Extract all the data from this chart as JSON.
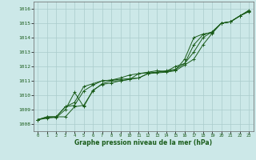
{
  "background_color": "#cce8e8",
  "grid_color": "#aacccc",
  "line_color": "#1a5c1a",
  "xlabel": "Graphe pression niveau de la mer (hPa)",
  "ylim": [
    1007.5,
    1016.5
  ],
  "xlim": [
    -0.5,
    23.5
  ],
  "yticks": [
    1008,
    1009,
    1010,
    1011,
    1012,
    1013,
    1014,
    1015,
    1016
  ],
  "xticks": [
    0,
    1,
    2,
    3,
    4,
    5,
    6,
    7,
    8,
    9,
    10,
    11,
    12,
    13,
    14,
    15,
    16,
    17,
    18,
    19,
    20,
    21,
    22,
    23
  ],
  "series": [
    [
      1008.3,
      1008.5,
      1008.5,
      1009.2,
      1009.3,
      1010.3,
      1010.7,
      1011.0,
      1011.05,
      1011.1,
      1011.15,
      1011.2,
      1011.5,
      1011.55,
      1011.6,
      1011.7,
      1012.1,
      1012.5,
      1013.5,
      1014.3,
      1015.0,
      1015.1,
      1015.5,
      1015.8
    ],
    [
      1008.3,
      1008.5,
      1008.5,
      1009.2,
      1009.5,
      1010.6,
      1010.8,
      1011.0,
      1011.05,
      1011.2,
      1011.4,
      1011.5,
      1011.55,
      1011.6,
      1011.7,
      1011.8,
      1012.2,
      1013.5,
      1014.2,
      1014.4,
      1015.0,
      1015.1,
      1015.5,
      1015.9
    ],
    [
      1008.3,
      1008.45,
      1008.45,
      1009.0,
      1010.2,
      1009.2,
      1010.35,
      1010.75,
      1010.85,
      1011.0,
      1011.1,
      1011.5,
      1011.6,
      1011.7,
      1011.65,
      1011.75,
      1012.5,
      1014.0,
      1014.25,
      1014.35,
      1015.0,
      1015.1,
      1015.5,
      1015.85
    ],
    [
      1008.3,
      1008.4,
      1008.5,
      1008.5,
      1009.2,
      1009.3,
      1010.3,
      1010.8,
      1011.0,
      1011.0,
      1011.1,
      1011.2,
      1011.5,
      1011.6,
      1011.65,
      1012.0,
      1012.2,
      1013.0,
      1014.0,
      1014.4,
      1015.0,
      1015.1,
      1015.5,
      1015.85
    ]
  ]
}
